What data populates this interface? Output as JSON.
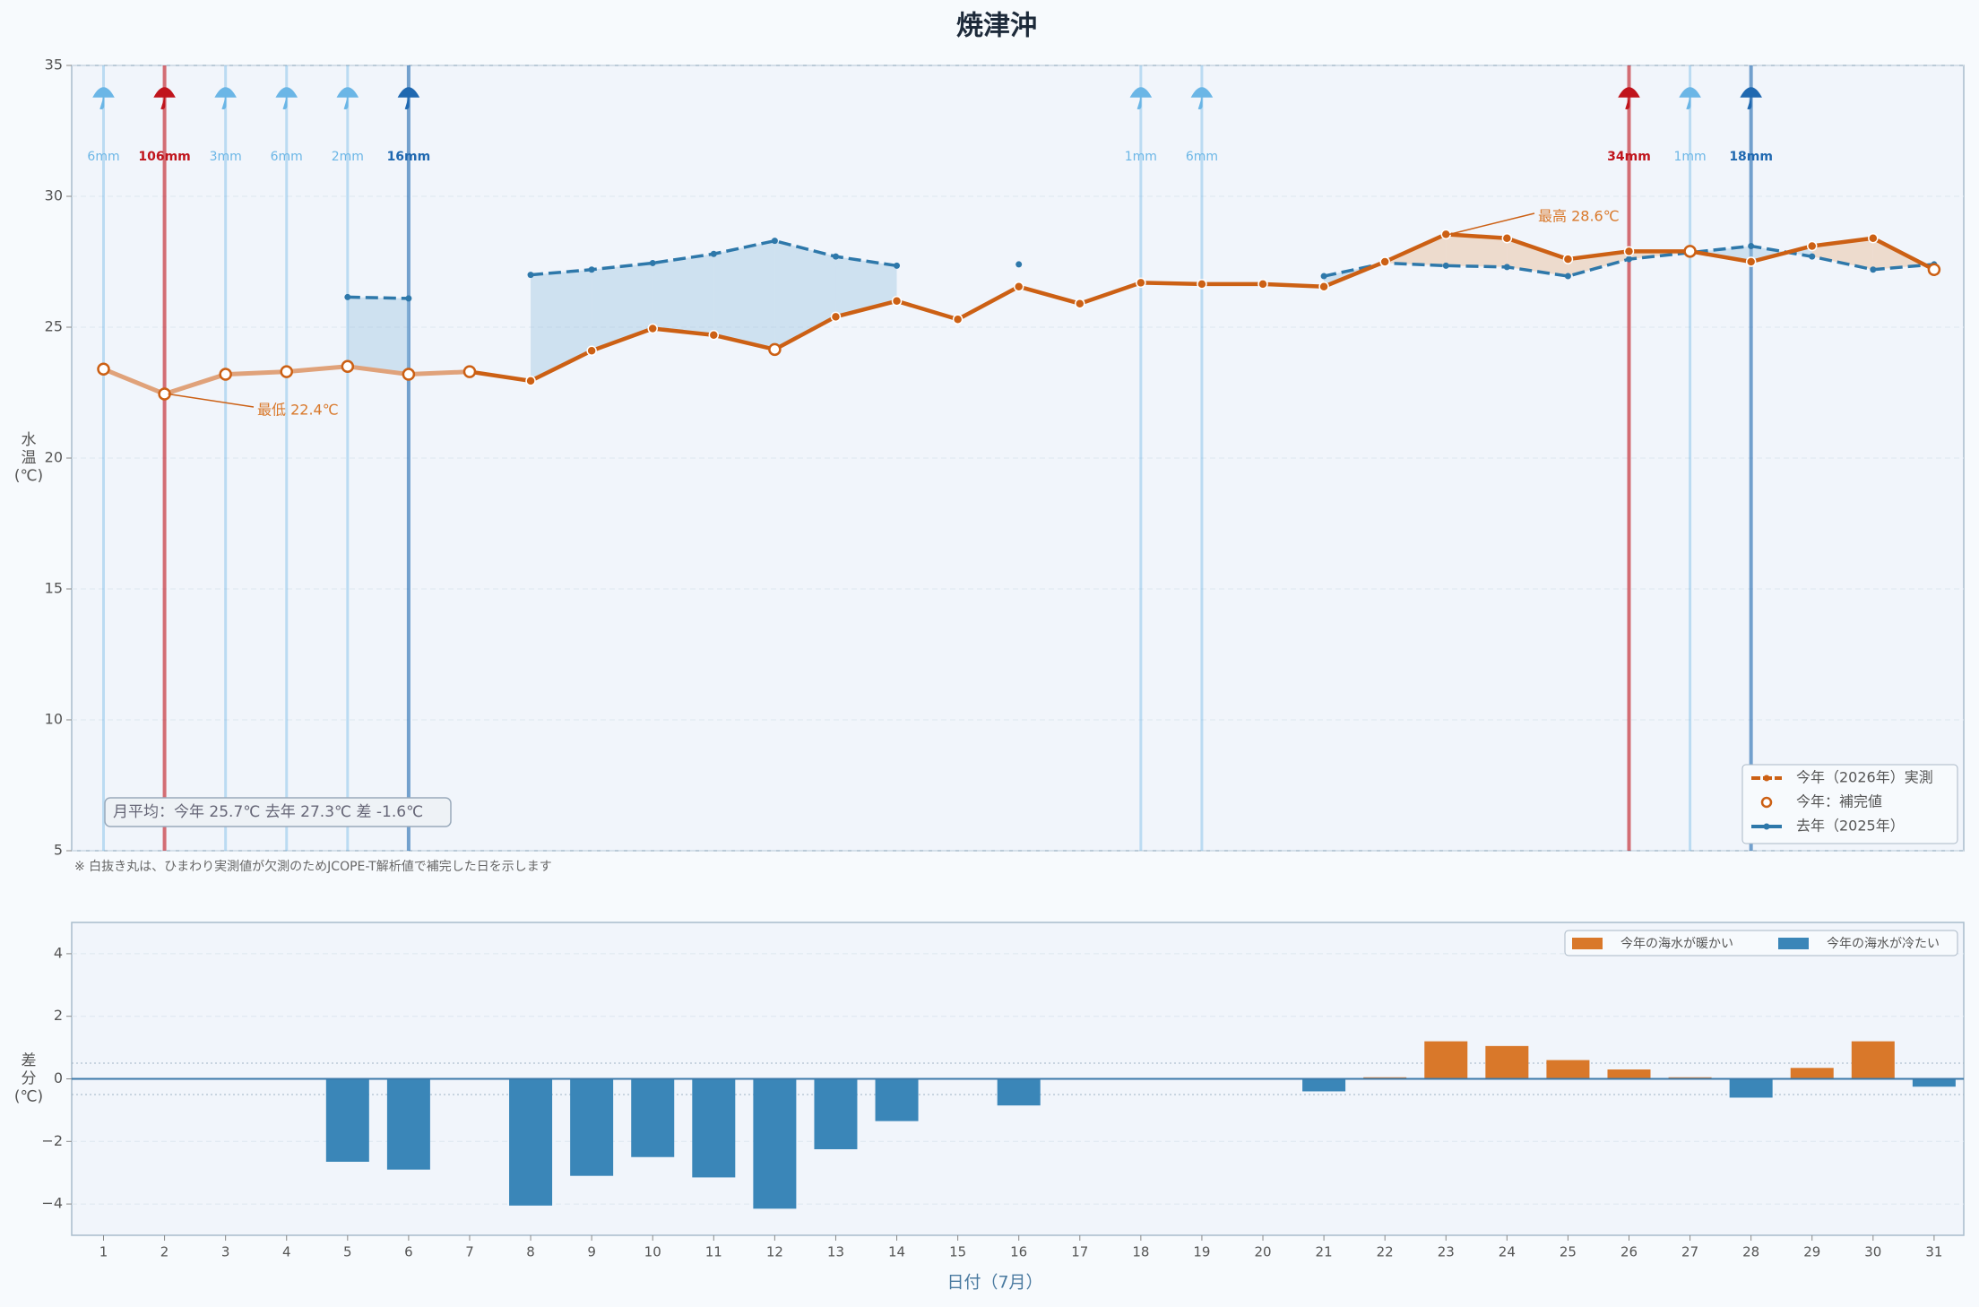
{
  "chart_data": [
    {
      "type": "line",
      "title": "焼津沖",
      "x": [
        1,
        2,
        3,
        4,
        5,
        6,
        7,
        8,
        9,
        10,
        11,
        12,
        13,
        14,
        15,
        16,
        17,
        18,
        19,
        20,
        21,
        22,
        23,
        24,
        25,
        26,
        27,
        28,
        29,
        30,
        31
      ],
      "series": [
        {
          "name": "今年（2026年）実測",
          "color": "#cc6014",
          "values": [
            23.4,
            22.45,
            23.2,
            23.3,
            23.5,
            23.2,
            23.3,
            22.95,
            24.1,
            24.95,
            24.7,
            24.15,
            25.4,
            26.0,
            25.3,
            26.55,
            25.9,
            26.7,
            26.65,
            26.65,
            26.55,
            27.5,
            28.55,
            28.4,
            27.6,
            27.9,
            27.9,
            27.5,
            28.1,
            28.4,
            27.2
          ]
        },
        {
          "name": "去年（2025年）",
          "color": "#2e78aa",
          "values": [
            null,
            null,
            null,
            null,
            26.15,
            26.1,
            null,
            27.0,
            27.2,
            27.45,
            27.8,
            28.3,
            27.7,
            27.35,
            null,
            27.4,
            null,
            null,
            null,
            null,
            26.95,
            27.45,
            27.35,
            27.3,
            26.95,
            27.6,
            27.85,
            28.1,
            27.7,
            27.2,
            27.4
          ]
        }
      ],
      "imputed": [
        true,
        true,
        true,
        true,
        true,
        true,
        true,
        false,
        false,
        false,
        false,
        true,
        false,
        false,
        false,
        false,
        false,
        false,
        false,
        false,
        false,
        false,
        false,
        false,
        false,
        false,
        true,
        false,
        false,
        false,
        true
      ],
      "imputed_label": "今年：補完値",
      "ylabel_lines": [
        "水",
        "温",
        "(℃)"
      ],
      "ylim": [
        5,
        35
      ],
      "yticks": [
        5,
        10,
        15,
        20,
        25,
        30,
        35
      ],
      "grid": true,
      "rain": {
        "days": [
          1,
          2,
          3,
          4,
          5,
          6,
          18,
          19,
          26,
          27,
          28
        ],
        "values": [
          6,
          106,
          3,
          6,
          2,
          16,
          1,
          6,
          34,
          1,
          18
        ],
        "value_labels": [
          "6mm",
          "106mm",
          "3mm",
          "6mm",
          "2mm",
          "16mm",
          "1mm",
          "6mm",
          "34mm",
          "1mm",
          "18mm"
        ],
        "colors": [
          "#6bb6e6",
          "#c0141c",
          "#6bb6e6",
          "#6bb6e6",
          "#6bb6e6",
          "#1f68b0",
          "#6bb6e6",
          "#6bb6e6",
          "#c0141c",
          "#6bb6e6",
          "#1f68b0"
        ]
      },
      "min_label": "最低 22.4℃",
      "max_label": "最高 28.6℃",
      "summary": "月平均：今年 25.7℃  去年 27.3℃  差 -1.6℃",
      "note": "※ 白抜き丸は、ひまわり実測値が欠測のためJCOPE-T解析値で補完した日を示します",
      "legend": "lower right"
    },
    {
      "type": "bar",
      "x": [
        1,
        2,
        3,
        4,
        5,
        6,
        7,
        8,
        9,
        10,
        11,
        12,
        13,
        14,
        15,
        16,
        17,
        18,
        19,
        20,
        21,
        22,
        23,
        24,
        25,
        26,
        27,
        28,
        29,
        30,
        31
      ],
      "values": [
        null,
        null,
        null,
        null,
        -2.65,
        -2.9,
        null,
        -4.05,
        -3.1,
        -2.5,
        -3.15,
        -4.15,
        -2.25,
        -1.35,
        null,
        -0.85,
        null,
        null,
        null,
        null,
        -0.4,
        0.05,
        1.2,
        1.05,
        0.6,
        0.3,
        0.05,
        -0.6,
        0.35,
        1.2,
        -0.25
      ],
      "legend": [
        {
          "name": "今年の海水が暖かい",
          "color": "#d9782a"
        },
        {
          "name": "今年の海水が冷たい",
          "color": "#3a86b8"
        }
      ],
      "guides": [
        -0.5,
        0.5
      ],
      "xlabel": "日付（7月）",
      "ylabel_lines": [
        "差",
        "分",
        "(℃)"
      ],
      "ylim": [
        -5,
        5
      ],
      "yticks": [
        {
          "value": -4,
          "label": "−4"
        },
        {
          "value": -2,
          "label": "−2"
        },
        0,
        2,
        4
      ],
      "grid": true
    }
  ]
}
